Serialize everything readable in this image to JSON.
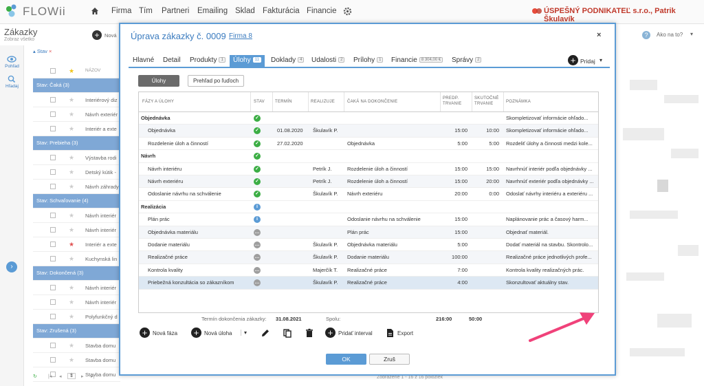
{
  "app": {
    "logo_text": "FLOWii"
  },
  "nav": [
    "Firma",
    "Tím",
    "Partneri",
    "Emailing",
    "Sklad",
    "Fakturácia",
    "Financie"
  ],
  "company": "ÚSPEŠNÝ PODNIKATEĽ s.r.o., Patrik Škulavík",
  "background": {
    "title": "Zákazky",
    "subtitle": "Zobraz všetko",
    "new_label": "Nová",
    "help_label": "Ako na to?",
    "side": [
      "Pohľad",
      "Hľadaj"
    ],
    "filter": "Stav",
    "col_name": "NÁZOV",
    "groups": [
      "Stav: Čaká (3)",
      "Stav: Prebieha (3)",
      "Stav: Schvaľovanie (4)",
      "Stav: Dokončená (3)",
      "Stav: Zrušená (3)"
    ],
    "items": [
      "Interiérový diz",
      "Návrh exteriér",
      "Interiér a exte",
      "Výstavba rodi",
      "Detský kútik -",
      "Návrh záhrady",
      "Návrh interiér",
      "Návrh interiér",
      "Interiér a exte",
      "Kuchynská lin",
      "Návrh interiér",
      "Návrh interiér",
      "Polyfunkčný d",
      "Stavba domu",
      "Stavba domu",
      "Stavba domu"
    ],
    "footer_page": "1",
    "footer_status": "Zobrazené 1 - 16 z 16 položiek"
  },
  "modal": {
    "title": "Úprava zákazky č. 0009",
    "firm_link": "Firma 8",
    "close": "×",
    "tabs": [
      {
        "label": "Hlavné",
        "badge": ""
      },
      {
        "label": "Detail",
        "badge": ""
      },
      {
        "label": "Produkty",
        "badge": "1"
      },
      {
        "label": "Úlohy",
        "badge": "11"
      },
      {
        "label": "Doklady",
        "badge": "4"
      },
      {
        "label": "Udalosti",
        "badge": "2"
      },
      {
        "label": "Prílohy",
        "badge": "1"
      },
      {
        "label": "Financie",
        "badge": "8 304,00 €"
      },
      {
        "label": "Správy",
        "badge": "2"
      }
    ],
    "add_label": "Pridaj",
    "view_buttons": [
      "Úlohy",
      "Prehľad po ľuďoch"
    ],
    "columns": [
      "FÁZY A ÚLOHY",
      "STAV",
      "TERMÍN",
      "REALIZUJE",
      "ČAKÁ NA DOKONČENIE",
      "PREDP. TRVANIE",
      "SKUTOČNÉ TRVANIE",
      "POZNÁMKA"
    ],
    "rows": [
      {
        "phase": true,
        "name": "Objednávka",
        "status": "done",
        "term": "",
        "who": "",
        "wait": "",
        "plan": "",
        "real": "",
        "note": "Skompletizovať informácie ohľado..."
      },
      {
        "phase": false,
        "name": "Objednávka",
        "status": "done",
        "term": "01.08.2020",
        "who": "Škulavík P.",
        "wait": "",
        "plan": "15:00",
        "real": "10:00",
        "note": "Skompletizovať informácie ohľado..."
      },
      {
        "phase": false,
        "name": "Rozdelenie úloh a činností",
        "status": "done",
        "term": "27.02.2020",
        "who": "",
        "wait": "Objednávka",
        "plan": "5:00",
        "real": "5:00",
        "note": "Rozdeliť úlohy a činnosti medzi kole..."
      },
      {
        "phase": true,
        "name": "Návrh",
        "status": "done",
        "term": "",
        "who": "",
        "wait": "",
        "plan": "",
        "real": "",
        "note": ""
      },
      {
        "phase": false,
        "name": "Návrh interiéru",
        "status": "done",
        "term": "",
        "who": "Petrík J.",
        "wait": "Rozdelenie úloh a činností",
        "plan": "15:00",
        "real": "15:00",
        "note": "Navrhnúť interiér podľa objednávky ..."
      },
      {
        "phase": false,
        "name": "Návrh exteriéru",
        "status": "done",
        "term": "",
        "who": "Petrík J.",
        "wait": "Rozdelenie úloh a činností",
        "plan": "15:00",
        "real": "20:00",
        "note": "Navrhnúť exteriér podľa objednávky ..."
      },
      {
        "phase": false,
        "name": "Odoslanie návrhu na schválenie",
        "status": "done",
        "term": "",
        "who": "Škulavík P.",
        "wait": "Návrh exteriéru",
        "plan": "20:00",
        "real": "0:00",
        "note": "Odoslať návrhy interiéru a exteriéru ..."
      },
      {
        "phase": true,
        "name": "Realizácia",
        "status": "info",
        "term": "",
        "who": "",
        "wait": "",
        "plan": "",
        "real": "",
        "note": ""
      },
      {
        "phase": false,
        "name": "Plán prác",
        "status": "info",
        "term": "",
        "who": "",
        "wait": "Odoslanie návrhu na schválenie",
        "plan": "15:00",
        "real": "",
        "note": "Naplánovanie prác a časový harm..."
      },
      {
        "phase": false,
        "name": "Objednávka materiálu",
        "status": "pending",
        "term": "",
        "who": "",
        "wait": "Plán prác",
        "plan": "15:00",
        "real": "",
        "note": "Objednať materiál."
      },
      {
        "phase": false,
        "name": "Dodanie materiálu",
        "status": "pending",
        "term": "",
        "who": "Škulavík P.",
        "wait": "Objednávka materiálu",
        "plan": "5:00",
        "real": "",
        "note": "Dodať materiál na stavbu. Skontrolo..."
      },
      {
        "phase": false,
        "name": "Realizačné práce",
        "status": "pending",
        "term": "",
        "who": "Škulavík P.",
        "wait": "Dodanie materiálu",
        "plan": "100:00",
        "real": "",
        "note": "Realizačné práce jednotlivých profe..."
      },
      {
        "phase": false,
        "name": "Kontrola kvality",
        "status": "pending",
        "term": "",
        "who": "Majerčík T.",
        "wait": "Realizačné práce",
        "plan": "7:00",
        "real": "",
        "note": "Kontrola kvality realizačných prác."
      },
      {
        "phase": false,
        "name": "Priebežná konzultácia so zákazníkom",
        "status": "pending",
        "term": "",
        "who": "Škulavík P.",
        "wait": "Realizačné práce",
        "plan": "4:00",
        "real": "",
        "note": "Skonzultovať aktuálny stav."
      }
    ],
    "summary": {
      "deadline_label": "Termín dokončenia zákazky:",
      "deadline": "31.08.2021",
      "total_label": "Spolu:",
      "total_plan": "216:00",
      "total_real": "50:00"
    },
    "toolbar": {
      "new_phase": "Nová fáza",
      "new_task": "Nová úloha",
      "add_interval": "Pridať interval",
      "export": "Export"
    },
    "ok": "OK",
    "cancel": "Zruš"
  },
  "colors": {
    "accent": "#5b9bd5",
    "done": "#3cae45",
    "pending": "#9e9e9e",
    "company": "#c0392b",
    "arrow": "#f0427a"
  }
}
